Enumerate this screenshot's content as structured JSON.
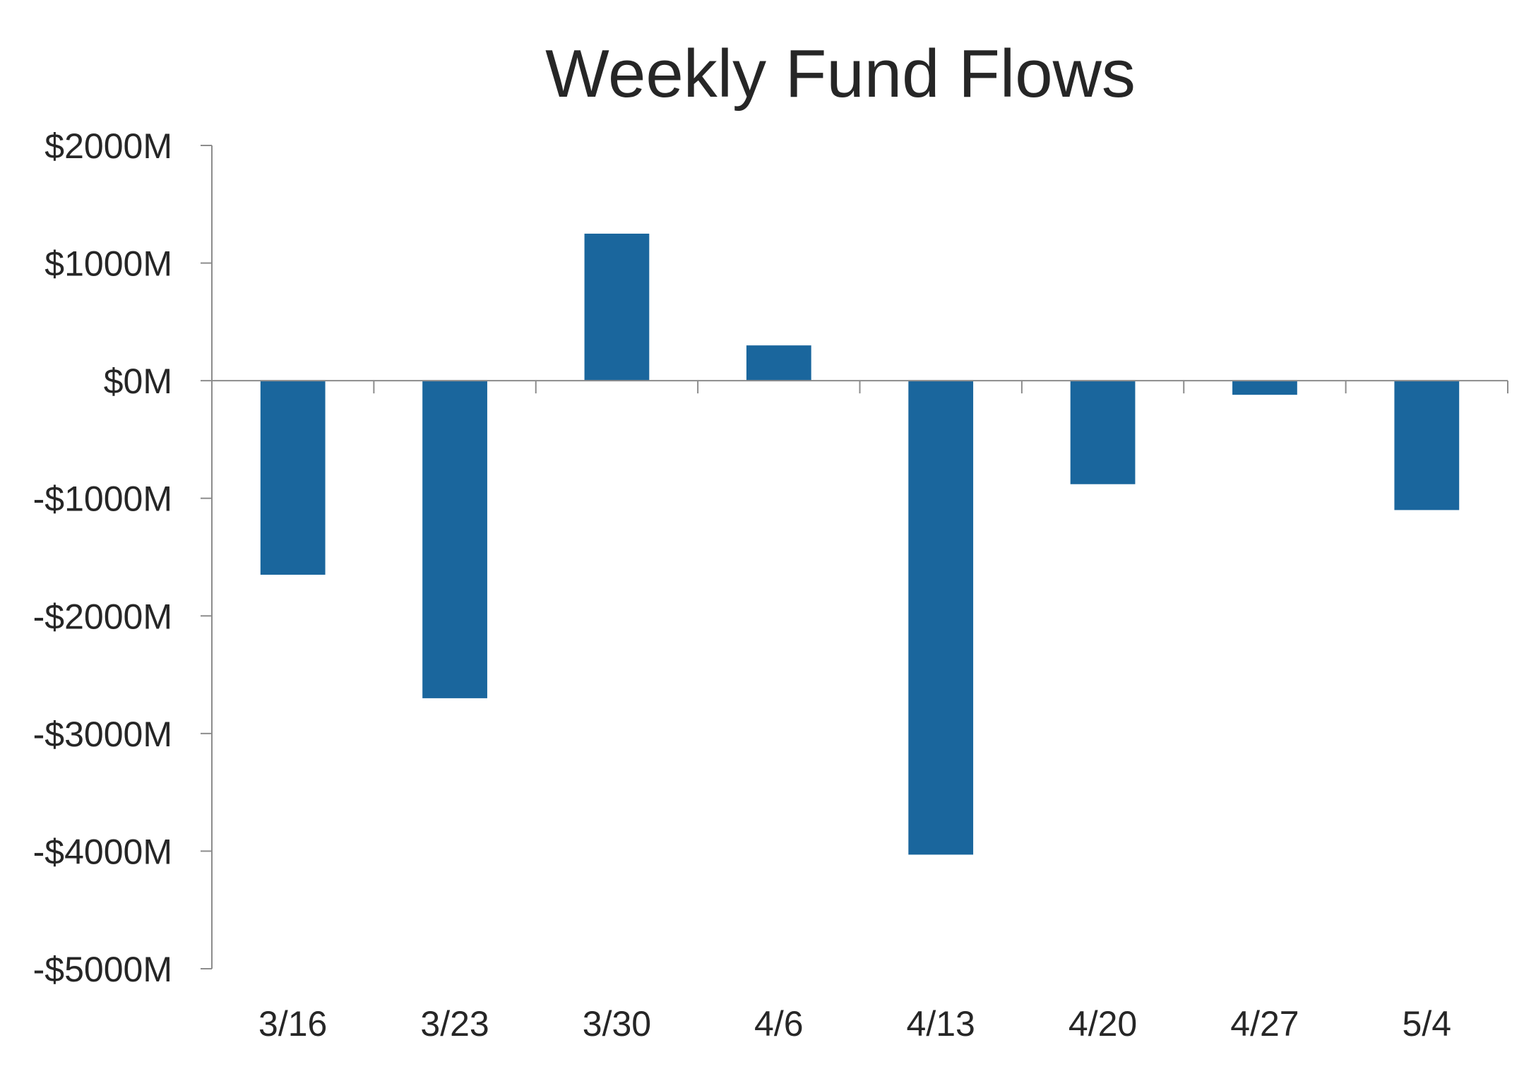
{
  "chart_data": {
    "type": "bar",
    "title": "Weekly Fund Flows",
    "xlabel": "",
    "ylabel": "",
    "categories": [
      "3/16",
      "3/23",
      "3/30",
      "4/6",
      "4/13",
      "4/20",
      "4/27",
      "5/4"
    ],
    "values": [
      -1650,
      -2700,
      1250,
      300,
      -4030,
      -880,
      -120,
      -1100
    ],
    "ylim": [
      -5000,
      2000
    ],
    "yticks": [
      2000,
      1000,
      0,
      -1000,
      -2000,
      -3000,
      -4000,
      -5000
    ],
    "ytick_labels": [
      "$2000M",
      "$1000M",
      "$0M",
      "-$1000M",
      "-$2000M",
      "-$3000M",
      "-$4000M",
      "-$5000M"
    ],
    "grid": false,
    "legend": "none",
    "colors": {
      "bar": "#1a669d",
      "axis": "#8c8c8c",
      "text": "#262626"
    }
  }
}
